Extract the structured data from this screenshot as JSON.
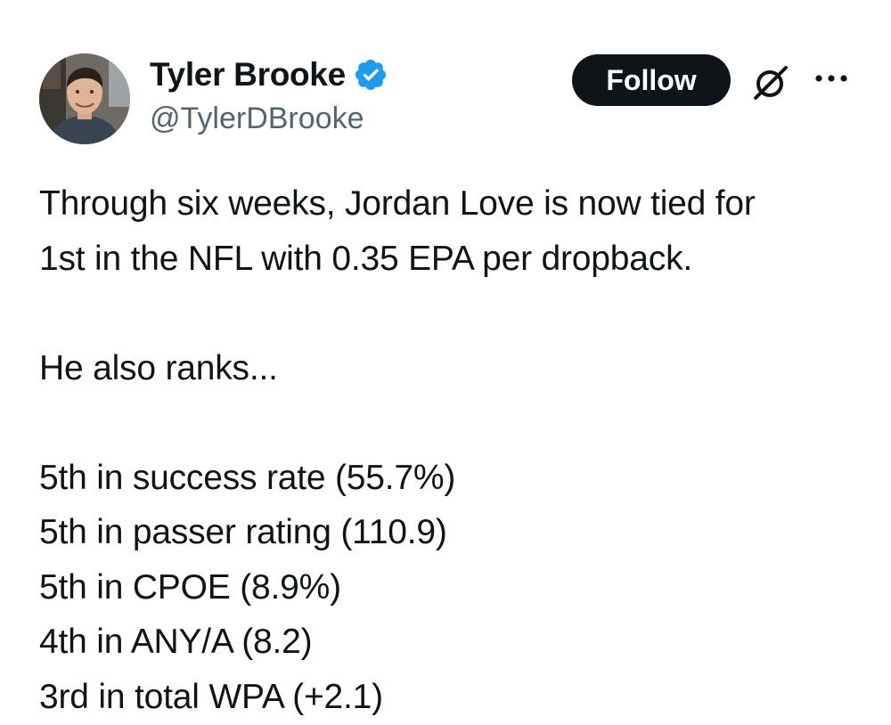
{
  "author": {
    "display_name": "Tyler Brooke",
    "handle": "@TylerDBrooke",
    "verified": true,
    "verified_color": "#1d9bf0"
  },
  "actions": {
    "follow_label": "Follow",
    "grok_icon": "grok-icon",
    "more_icon": "more-icon"
  },
  "tweet": {
    "lines": [
      "Through six weeks, Jordan Love is now tied for",
      "1st in the NFL with 0.35 EPA per dropback.",
      "",
      "He also ranks...",
      "",
      "5th in success rate (55.7%)",
      "5th in passer rating (110.9)",
      "5th in CPOE (8.9%)",
      "4th in ANY/A (8.2)",
      "3rd in total WPA (+2.1)"
    ]
  },
  "colors": {
    "text": "#0f1419",
    "secondary": "#536471",
    "button_bg": "#0f1419",
    "button_text": "#ffffff"
  }
}
